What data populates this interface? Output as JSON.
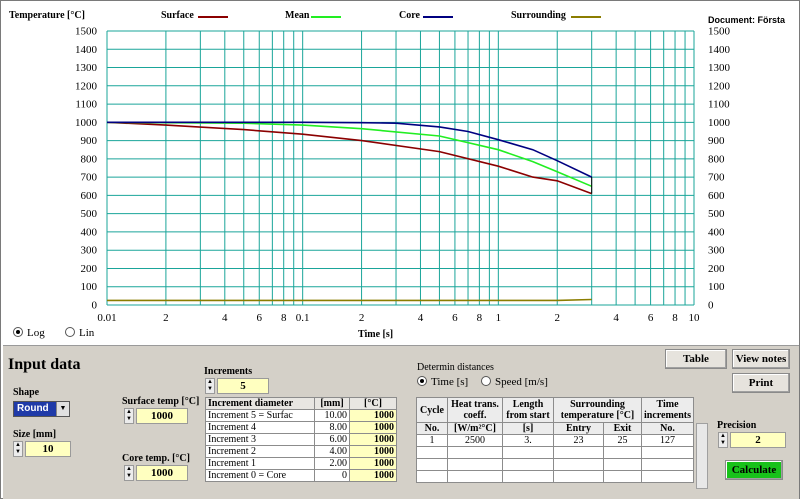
{
  "chart": {
    "ylabel": "Temperature [°C]",
    "xlabel": "Time [s]",
    "document_label": "Document: Första",
    "legend": [
      {
        "name": "Surface",
        "color": "#8b0000"
      },
      {
        "name": "Mean",
        "color": "#22ee22"
      },
      {
        "name": "Core",
        "color": "#000080"
      },
      {
        "name": "Surrounding",
        "color": "#8b7d00"
      }
    ],
    "scale_options": [
      {
        "label": "Log",
        "selected": true
      },
      {
        "label": "Lin",
        "selected": false
      }
    ],
    "grid_color": "#1aa59a",
    "y_ticks": [
      "1500",
      "1400",
      "1300",
      "1200",
      "1100",
      "1000",
      "900",
      "800",
      "700",
      "600",
      "500",
      "400",
      "300",
      "200",
      "100",
      "0"
    ],
    "x_tick_labels": [
      {
        "v": 0.01,
        "t": "0.01"
      },
      {
        "v": 0.02,
        "t": "2"
      },
      {
        "v": 0.04,
        "t": "4"
      },
      {
        "v": 0.06,
        "t": "6"
      },
      {
        "v": 0.08,
        "t": "8"
      },
      {
        "v": 0.1,
        "t": "0.1"
      },
      {
        "v": 0.2,
        "t": "2"
      },
      {
        "v": 0.4,
        "t": "4"
      },
      {
        "v": 0.6,
        "t": "6"
      },
      {
        "v": 0.8,
        "t": "8"
      },
      {
        "v": 1,
        "t": "1"
      },
      {
        "v": 2,
        "t": "2"
      },
      {
        "v": 4,
        "t": "4"
      },
      {
        "v": 6,
        "t": "6"
      },
      {
        "v": 8,
        "t": "8"
      },
      {
        "v": 10,
        "t": "10"
      }
    ]
  },
  "chart_data": {
    "type": "line",
    "xlabel": "Time [s]",
    "ylabel": "Temperature [°C]",
    "x_scale": "log",
    "xlim": [
      0.01,
      10
    ],
    "ylim": [
      0,
      1500
    ],
    "grid": true,
    "series": [
      {
        "name": "Surface",
        "color": "#8b0000",
        "x": [
          0.01,
          0.02,
          0.05,
          0.1,
          0.2,
          0.5,
          1,
          1.5,
          2,
          3
        ],
        "y": [
          1000,
          985,
          960,
          935,
          900,
          840,
          760,
          700,
          680,
          610
        ]
      },
      {
        "name": "Mean",
        "color": "#22ee22",
        "x": [
          0.01,
          0.05,
          0.1,
          0.2,
          0.5,
          1,
          1.5,
          2,
          3
        ],
        "y": [
          1000,
          995,
          985,
          965,
          925,
          850,
          785,
          730,
          650
        ]
      },
      {
        "name": "Core",
        "color": "#000080",
        "x": [
          0.01,
          0.1,
          0.2,
          0.3,
          0.5,
          0.7,
          1,
          1.5,
          2,
          3
        ],
        "y": [
          1000,
          1000,
          998,
          995,
          975,
          950,
          905,
          850,
          790,
          700
        ]
      },
      {
        "name": "Surrounding",
        "color": "#8b7d00",
        "x": [
          0.01,
          2,
          3
        ],
        "y": [
          25,
          25,
          30
        ]
      }
    ]
  },
  "input": {
    "title": "Input data",
    "shape_label": "Shape",
    "shape_value": "Round",
    "size_label": "Size [mm]",
    "size_value": "10",
    "surface_temp_label": "Surface temp [°C]",
    "surface_temp_value": "1000",
    "core_temp_label": "Core temp. [°C]",
    "core_temp_value": "1000",
    "increments_label": "Increments",
    "increments_value": "5"
  },
  "increment_table": {
    "headers": [
      "Increment diameter",
      "[mm]",
      "[°C]"
    ],
    "rows": [
      [
        "Increment 5 = Surfac",
        "10.00",
        "1000"
      ],
      [
        "Increment 4",
        "8.00",
        "1000"
      ],
      [
        "Increment 3",
        "6.00",
        "1000"
      ],
      [
        "Increment 2",
        "4.00",
        "1000"
      ],
      [
        "Increment 1",
        "2.00",
        "1000"
      ],
      [
        "Increment 0 = Core",
        "0",
        "1000"
      ]
    ]
  },
  "distances": {
    "label": "Determin distances",
    "options": [
      {
        "label": "Time [s]",
        "selected": true
      },
      {
        "label": "Speed [m/s]",
        "selected": false
      }
    ]
  },
  "cycle_table": {
    "header_top": [
      "Cycle",
      "Heat trans. coeff.",
      "Length from start",
      "Surrounding temperature [°C]",
      "Time increments"
    ],
    "header_sub": [
      "No.",
      "[W/m²°C]",
      "[s]",
      "Entry",
      "Exit",
      "No."
    ],
    "rows": [
      [
        "1",
        "2500",
        "3.",
        "23",
        "25",
        "127"
      ]
    ]
  },
  "buttons": {
    "table": "Table",
    "view_notes": "View notes",
    "print": "Print",
    "calculate": "Calculate"
  },
  "precision": {
    "label": "Precision",
    "value": "2"
  }
}
